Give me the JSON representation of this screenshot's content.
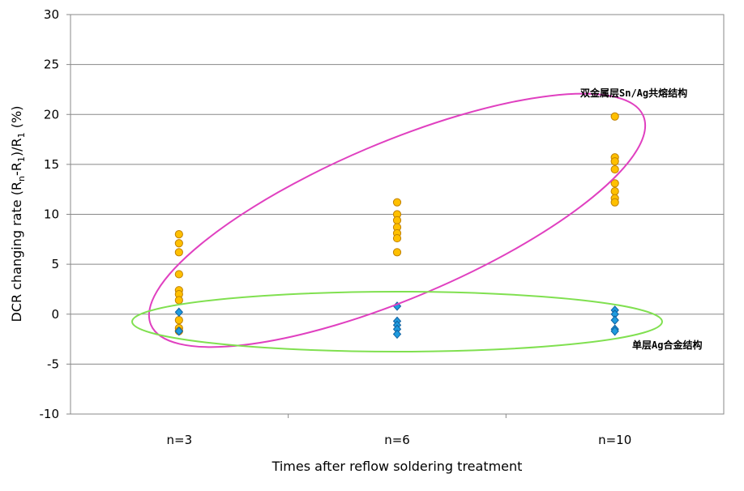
{
  "chart_data": {
    "type": "scatter",
    "title": "",
    "xlabel": "Times after reflow soldering treatment",
    "ylabel_parts": [
      "DCR changing rate (R",
      "n",
      "-R",
      "1",
      ")/R",
      "1",
      " (%)"
    ],
    "categories": [
      "n=3",
      "n=6",
      "n=10"
    ],
    "ylim": [
      -10,
      30
    ],
    "yticks": [
      -10,
      -5,
      0,
      5,
      10,
      15,
      20,
      25,
      30
    ],
    "grid": true,
    "series": [
      {
        "marker": "circle",
        "color": "#FFC000",
        "stroke": "#C08000",
        "values": [
          [
            8.0,
            7.1,
            6.2,
            4.0,
            2.4,
            2.0,
            1.4,
            -0.6,
            -1.4,
            -1.7
          ],
          [
            11.2,
            10.0,
            9.4,
            8.7,
            8.1,
            7.6,
            6.2
          ],
          [
            19.8,
            15.7,
            15.3,
            14.5,
            13.1,
            12.3,
            11.6,
            11.2
          ]
        ]
      },
      {
        "marker": "diamond",
        "color": "#1F9BDE",
        "stroke": "#1060A0",
        "values": [
          [
            0.2,
            -1.7
          ],
          [
            0.8,
            -0.7,
            -1.1,
            -1.5,
            -2.0
          ],
          [
            0.4,
            0.0,
            -0.6,
            -1.5,
            -1.7
          ]
        ]
      }
    ],
    "annotations": [
      {
        "text": "双金属层Sn/Ag共熔结构",
        "color": "#E040C0"
      },
      {
        "text": "单层Ag合金结构",
        "color": "#80E050"
      }
    ]
  }
}
